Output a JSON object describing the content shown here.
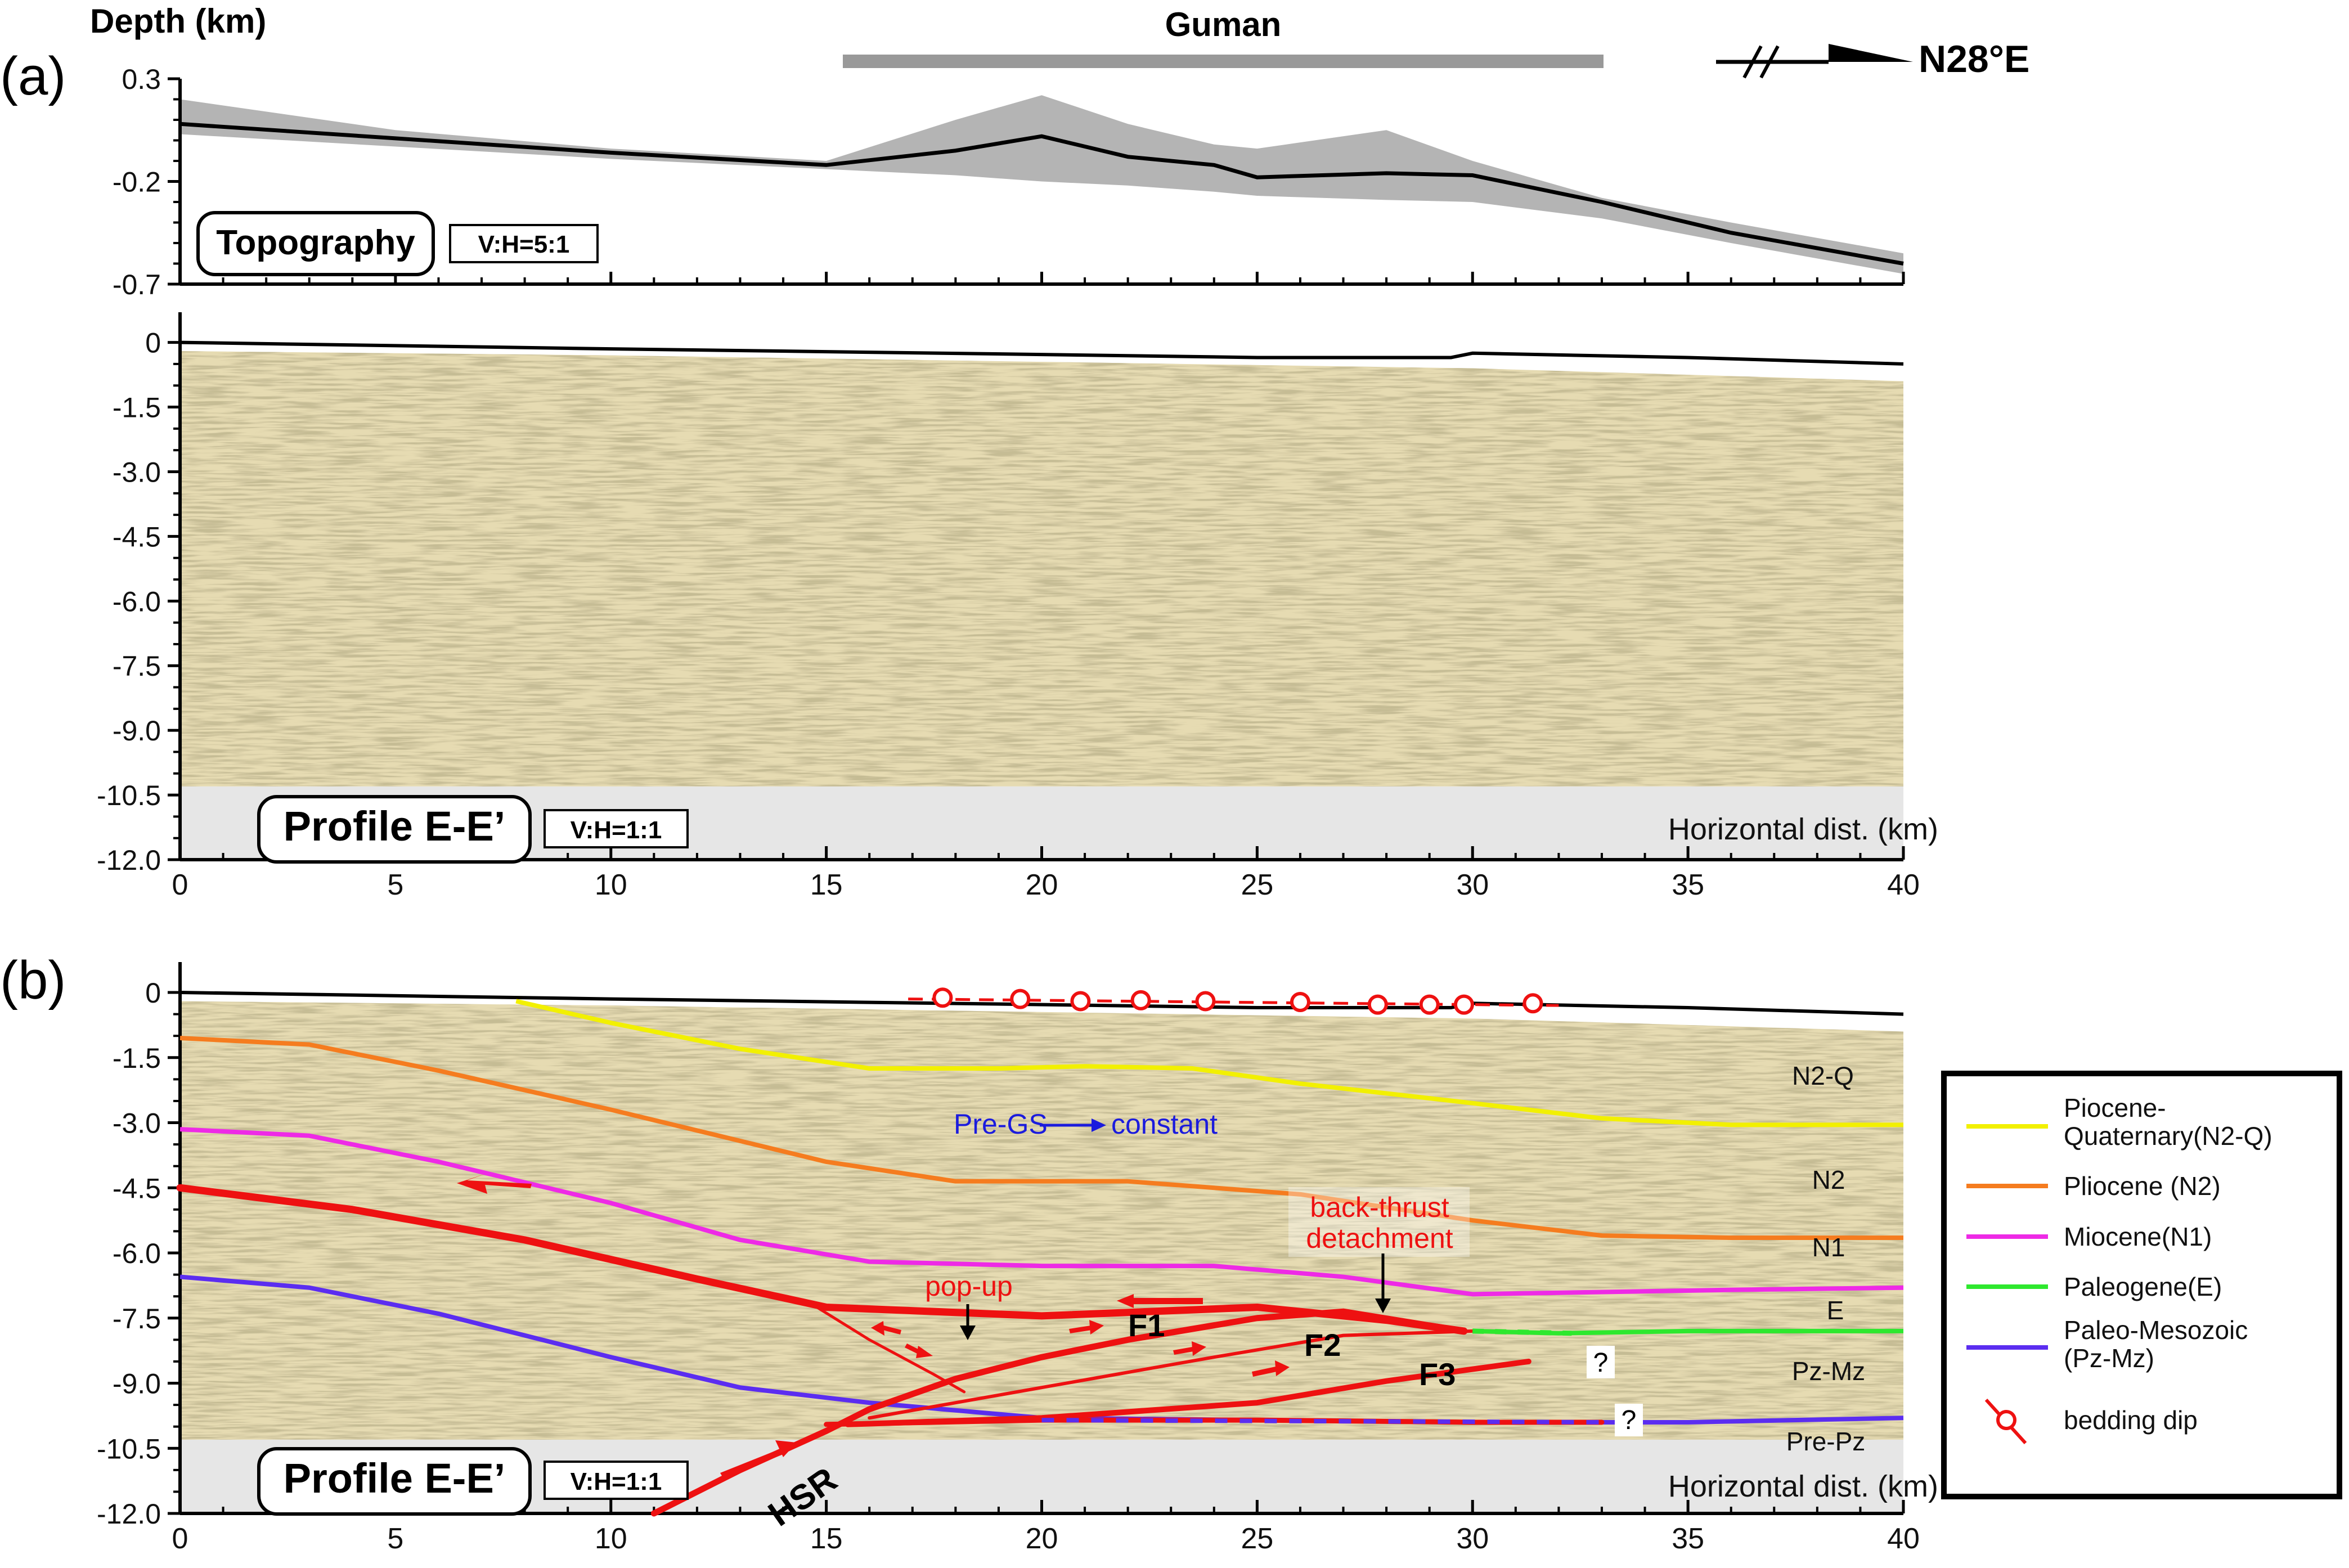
{
  "panel_a": {
    "label": "(a)",
    "depth_label": "Depth (km)",
    "region_label": "Guman",
    "north_arrow_label": "N28°E",
    "topo_label": "Topography",
    "topo_ratio": "V:H=5:1",
    "profile_label": "Profile E-E’",
    "profile_ratio": "V:H=1:1",
    "xaxis_label": "Horizontal dist. (km)"
  },
  "panel_b": {
    "label": "(b)",
    "profile_label": "Profile E-E’",
    "profile_ratio": "V:H=1:1",
    "xaxis_label": "Horizontal dist. (km)",
    "unit_labels": [
      "N2-Q",
      "N2",
      "N1",
      "E",
      "Pz-Mz",
      "Pre-Pz"
    ],
    "annotations": {
      "pre_gs": "Pre-GS",
      "constant": "constant",
      "back_thrust_1": "back-thrust",
      "back_thrust_2": "detachment",
      "pop_up": "pop-up",
      "f1": "F1",
      "f2": "F2",
      "f3": "F3",
      "hsr": "HSR",
      "q1": "?",
      "q2": "?"
    }
  },
  "legend": {
    "items": [
      {
        "label1": "Piocene-",
        "label2": "Quaternary(N2-Q)",
        "color": "#f2f000"
      },
      {
        "label1": "Pliocene (N2)",
        "label2": "",
        "color": "#f57c1f"
      },
      {
        "label1": "Miocene(N1)",
        "label2": "",
        "color": "#ee2ae6"
      },
      {
        "label1": "Paleogene(E)",
        "label2": "",
        "color": "#2ee82e"
      },
      {
        "label1": "Paleo-Mesozoic",
        "label2": "(Pz-Mz)",
        "color": "#5b2df0"
      },
      {
        "label1": "bedding dip",
        "label2": "",
        "color": "#ee1111"
      }
    ]
  },
  "chart_data": [
    {
      "type": "area",
      "ylabel": "Depth (km)",
      "ylim": [
        -0.7,
        0.3
      ],
      "yticks": [
        "0.3",
        "-0.2",
        "-0.7"
      ],
      "xlim": [
        0,
        40
      ],
      "series": [
        {
          "x": [
            0,
            5,
            10,
            15,
            18,
            20,
            22,
            24,
            25,
            28,
            30,
            33,
            36,
            40
          ],
          "y": [
            0.08,
            0.01,
            -0.06,
            -0.12,
            -0.05,
            0.02,
            -0.08,
            -0.12,
            -0.18,
            -0.16,
            -0.17,
            -0.3,
            -0.45,
            -0.6
          ]
        }
      ],
      "band_top": [
        0.2,
        0.05,
        -0.04,
        -0.1,
        0.1,
        0.22,
        0.08,
        -0.02,
        -0.04,
        0.05,
        -0.1,
        -0.28,
        -0.4,
        -0.55
      ],
      "band_bottom": [
        0.03,
        -0.03,
        -0.09,
        -0.14,
        -0.17,
        -0.2,
        -0.22,
        -0.25,
        -0.27,
        -0.29,
        -0.3,
        -0.38,
        -0.5,
        -0.65
      ]
    },
    {
      "type": "scatter",
      "ylim": [
        -12,
        0.7
      ],
      "yticks": [
        "0",
        "-1.5",
        "-3.0",
        "-4.5",
        "-6.0",
        "-7.5",
        "-9.0",
        "-10.5",
        "-12.0"
      ],
      "xlim": [
        0,
        40
      ],
      "xticks": [
        "0",
        "5",
        "10",
        "15",
        "20",
        "25",
        "30",
        "35",
        "40"
      ],
      "surface": {
        "x": [
          0,
          10,
          20,
          25,
          29.5,
          30,
          35,
          40
        ],
        "y": [
          0,
          -0.15,
          -0.28,
          -0.35,
          -0.35,
          -0.25,
          -0.35,
          -0.5
        ]
      },
      "section_top": {
        "x": [
          0,
          10,
          20,
          30,
          40
        ],
        "y": [
          -0.2,
          -0.3,
          -0.45,
          -0.6,
          -0.9
        ]
      },
      "section_bottom_depth": -10.3
    },
    {
      "type": "line",
      "ylim": [
        -12,
        0.7
      ],
      "yticks": [
        "0",
        "-1.5",
        "-3.0",
        "-4.5",
        "-6.0",
        "-7.5",
        "-9.0",
        "-10.5",
        "-12.0"
      ],
      "xlim": [
        0,
        40
      ],
      "xticks": [
        "0",
        "5",
        "10",
        "15",
        "20",
        "25",
        "30",
        "35",
        "40"
      ],
      "series": [
        {
          "name": "N2-Q",
          "color": "#f2f000",
          "x": [
            7.8,
            10,
            13,
            16,
            19,
            21,
            23.5,
            26,
            30,
            33,
            36,
            40
          ],
          "y": [
            -0.2,
            -0.7,
            -1.3,
            -1.75,
            -1.75,
            -1.7,
            -1.75,
            -2.1,
            -2.55,
            -2.9,
            -3.05,
            -3.05
          ]
        },
        {
          "name": "N2",
          "color": "#f57c1f",
          "x": [
            0,
            3,
            6,
            10,
            15,
            18,
            22,
            26,
            30,
            33,
            36,
            40
          ],
          "y": [
            -1.05,
            -1.2,
            -1.8,
            -2.7,
            -3.9,
            -4.35,
            -4.35,
            -4.65,
            -5.25,
            -5.6,
            -5.65,
            -5.65
          ]
        },
        {
          "name": "N1",
          "color": "#ee2ae6",
          "x": [
            0,
            3,
            6,
            10,
            13,
            16,
            20,
            24,
            27,
            30,
            33,
            36,
            40
          ],
          "y": [
            -3.15,
            -3.3,
            -3.9,
            -4.85,
            -5.7,
            -6.2,
            -6.3,
            -6.3,
            -6.55,
            -6.95,
            -6.9,
            -6.85,
            -6.8
          ]
        },
        {
          "name": "E",
          "color": "#2ee82e",
          "x": [
            30,
            32,
            35,
            40
          ],
          "y": [
            -7.8,
            -7.85,
            -7.8,
            -7.8
          ]
        },
        {
          "name": "Pz-Mz",
          "color": "#5b2df0",
          "x": [
            0,
            3,
            6,
            10,
            13,
            16,
            20,
            25,
            30,
            35,
            40
          ],
          "y": [
            -6.55,
            -6.8,
            -7.4,
            -8.4,
            -9.1,
            -9.45,
            -9.8,
            -9.85,
            -9.9,
            -9.9,
            -9.8
          ]
        }
      ],
      "faults": [
        {
          "name": "detachment",
          "x": [
            0,
            4,
            8,
            12,
            15,
            20,
            25,
            28,
            29.8
          ],
          "y": [
            -4.5,
            -5.0,
            -5.7,
            -6.6,
            -7.25,
            -7.45,
            -7.25,
            -7.55,
            -7.8
          ]
        },
        {
          "name": "HSR",
          "x": [
            11,
            13,
            15,
            16,
            18,
            20,
            22,
            25,
            27,
            29.8
          ],
          "y": [
            -12.0,
            -11.0,
            -10.1,
            -9.6,
            -8.9,
            -8.4,
            -8.0,
            -7.5,
            -7.35,
            -7.8
          ]
        },
        {
          "name": "F2",
          "x": [
            16,
            20,
            24,
            27,
            30
          ],
          "y": [
            -9.8,
            -9.1,
            -8.4,
            -7.9,
            -7.8
          ]
        },
        {
          "name": "F3",
          "x": [
            15.5,
            20,
            25,
            28,
            31.3
          ],
          "y": [
            -9.95,
            -9.8,
            -9.45,
            -8.95,
            -8.5
          ]
        },
        {
          "name": "basal",
          "x": [
            15,
            20,
            25,
            30,
            33
          ],
          "y": [
            -9.95,
            -9.85,
            -9.85,
            -9.9,
            -9.9
          ]
        },
        {
          "name": "pop-up back-thrust",
          "x": [
            14.7,
            16,
            17.5,
            18.2
          ],
          "y": [
            -7.2,
            -8.0,
            -8.8,
            -9.2
          ]
        }
      ],
      "bedding_dips": {
        "x": [
          17.7,
          19.5,
          20.9,
          22.3,
          23.8,
          26.0,
          27.8,
          29.0,
          29.8,
          31.4
        ],
        "y": [
          -0.12,
          -0.15,
          -0.2,
          -0.18,
          -0.2,
          -0.22,
          -0.28,
          -0.28,
          -0.28,
          -0.25
        ]
      }
    }
  ]
}
